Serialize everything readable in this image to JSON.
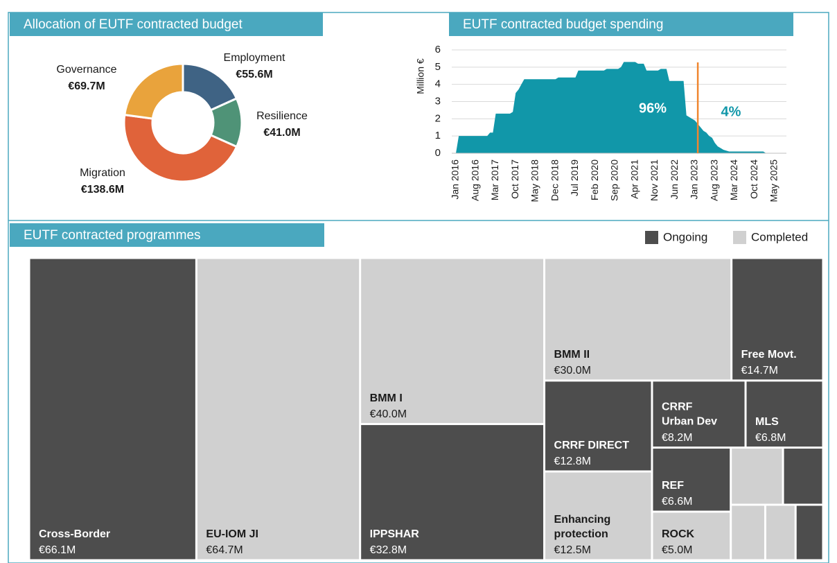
{
  "chart_data": [
    {
      "type": "pie",
      "title": "Allocation of EUTF contracted budget",
      "categories": [
        "Employment",
        "Resilience",
        "Migration",
        "Governance"
      ],
      "values": [
        55.6,
        41.0,
        138.6,
        69.7
      ],
      "value_labels": [
        "€55.6M",
        "€41.0M",
        "€138.6M",
        "€69.7M"
      ],
      "colors": [
        "#3f6384",
        "#4f9377",
        "#e0633a",
        "#e9a33c"
      ],
      "donut": true
    },
    {
      "type": "area",
      "title": "EUTF contracted budget spending",
      "y_label": "Million €",
      "categories": [
        "Jan 2016",
        null,
        null,
        null,
        null,
        null,
        null,
        "Aug 2016",
        null,
        null,
        null,
        null,
        null,
        null,
        "Mar 2017",
        null,
        null,
        null,
        null,
        null,
        null,
        "Oct 2017",
        null,
        null,
        null,
        null,
        null,
        null,
        "May 2018",
        null,
        null,
        null,
        null,
        null,
        null,
        "Dec 2018",
        null,
        null,
        null,
        null,
        null,
        null,
        "Jul 2019",
        null,
        null,
        null,
        null,
        null,
        null,
        "Feb 2020",
        null,
        null,
        null,
        null,
        null,
        null,
        "Sep 2020",
        null,
        null,
        null,
        null,
        null,
        null,
        "Apr 2021",
        null,
        null,
        null,
        null,
        null,
        null,
        "Nov 2021",
        null,
        null,
        null,
        null,
        null,
        null,
        "Jun 2022",
        null,
        null,
        null,
        null,
        null,
        null,
        "Jan 2023",
        null,
        null,
        null,
        null,
        null,
        null,
        "Aug 2023",
        null,
        null,
        null,
        null,
        null,
        null,
        "Mar 2024",
        null,
        null,
        null,
        null,
        null,
        null,
        "Oct 2024",
        null,
        null,
        null,
        null,
        null,
        null,
        "May 2025"
      ],
      "values": [
        0,
        1.0,
        1.0,
        1.0,
        1.0,
        1.0,
        1.0,
        1.0,
        1.0,
        1.0,
        1.0,
        1.0,
        1.2,
        1.2,
        2.3,
        2.3,
        2.3,
        2.3,
        2.3,
        2.3,
        2.4,
        3.5,
        3.7,
        4.0,
        4.3,
        4.3,
        4.3,
        4.3,
        4.3,
        4.3,
        4.3,
        4.3,
        4.3,
        4.3,
        4.3,
        4.3,
        4.4,
        4.4,
        4.4,
        4.4,
        4.4,
        4.4,
        4.4,
        4.8,
        4.8,
        4.8,
        4.8,
        4.8,
        4.8,
        4.8,
        4.8,
        4.8,
        4.8,
        4.9,
        4.9,
        4.9,
        4.9,
        4.9,
        5.0,
        5.3,
        5.3,
        5.3,
        5.3,
        5.3,
        5.2,
        5.2,
        5.2,
        4.8,
        4.8,
        4.8,
        4.8,
        4.8,
        4.9,
        4.9,
        4.9,
        4.2,
        4.2,
        4.2,
        4.2,
        4.2,
        4.2,
        2.2,
        2.1,
        2.0,
        1.9,
        1.7,
        1.5,
        1.3,
        1.2,
        1.0,
        0.9,
        0.6,
        0.4,
        0.3,
        0.2,
        0.15,
        0.1,
        0.1,
        0.1,
        0.1,
        0.1,
        0.1,
        0.1,
        0.1,
        0.1,
        0.1,
        0.1,
        0.1,
        0.1,
        0,
        0,
        0,
        0
      ],
      "color": "#1197a9",
      "ylim": [
        0,
        6
      ],
      "yticks": [
        0,
        1,
        2,
        3,
        4,
        5,
        6
      ],
      "grid": true,
      "vline_at": 85,
      "vline_color": "#f0862f",
      "annotations": [
        {
          "text": "96%",
          "color": "#ffffff"
        },
        {
          "text": "4%",
          "color": "#1197a9"
        }
      ]
    },
    {
      "type": "treemap",
      "title": "EUTF contracted programmes",
      "legend": [
        {
          "name": "Ongoing",
          "color": "#4d4d4d"
        },
        {
          "name": "Completed",
          "color": "#d0d0d0"
        }
      ],
      "items": [
        {
          "label": "Cross-Border",
          "value": 66.1,
          "value_label": "€66.1M",
          "status": "Ongoing"
        },
        {
          "label": "EU-IOM JI",
          "value": 64.7,
          "value_label": "€64.7M",
          "status": "Completed"
        },
        {
          "label": "BMM I",
          "value": 40.0,
          "value_label": "€40.0M",
          "status": "Completed"
        },
        {
          "label": "IPPSHAR",
          "value": 32.8,
          "value_label": "€32.8M",
          "status": "Ongoing"
        },
        {
          "label": "BMM II",
          "value": 30.0,
          "value_label": "€30.0M",
          "status": "Completed"
        },
        {
          "label": "Free Movt.",
          "value": 14.7,
          "value_label": "€14.7M",
          "status": "Ongoing"
        },
        {
          "label": "CRRF DIRECT",
          "value": 12.8,
          "value_label": "€12.8M",
          "status": "Ongoing"
        },
        {
          "label": "Enhancing protection",
          "value": 12.5,
          "value_label": "€12.5M",
          "status": "Completed"
        },
        {
          "label": "CRRF Urban Dev",
          "value": 8.2,
          "value_label": "€8.2M",
          "status": "Ongoing"
        },
        {
          "label": "MLS",
          "value": 6.8,
          "value_label": "€6.8M",
          "status": "Ongoing"
        },
        {
          "label": "REF",
          "value": 6.6,
          "value_label": "€6.6M",
          "status": "Ongoing"
        },
        {
          "label": "ROCK",
          "value": 5.0,
          "value_label": "€5.0M",
          "status": "Completed"
        },
        {
          "value": 3.9,
          "status": "Completed"
        },
        {
          "value": 3.0,
          "status": "Ongoing"
        },
        {
          "value": 2.5,
          "status": "Completed"
        },
        {
          "value": 2.2,
          "status": "Completed"
        },
        {
          "value": 2.0,
          "status": "Ongoing"
        }
      ]
    }
  ]
}
